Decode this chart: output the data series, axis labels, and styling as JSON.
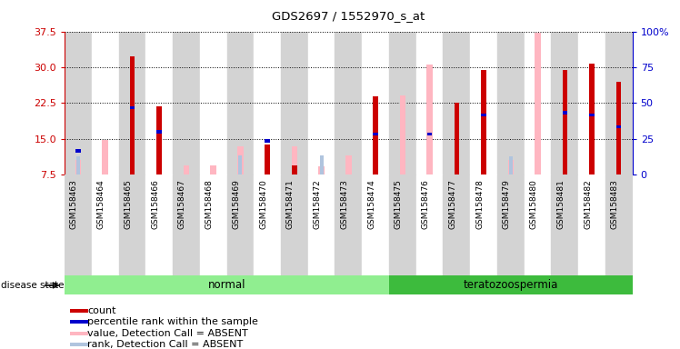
{
  "title": "GDS2697 / 1552970_s_at",
  "samples": [
    "GSM158463",
    "GSM158464",
    "GSM158465",
    "GSM158466",
    "GSM158467",
    "GSM158468",
    "GSM158469",
    "GSM158470",
    "GSM158471",
    "GSM158472",
    "GSM158473",
    "GSM158474",
    "GSM158475",
    "GSM158476",
    "GSM158477",
    "GSM158478",
    "GSM158479",
    "GSM158480",
    "GSM158481",
    "GSM158482",
    "GSM158483"
  ],
  "count_values": [
    null,
    null,
    32.2,
    21.8,
    null,
    null,
    null,
    13.8,
    9.5,
    null,
    null,
    23.8,
    null,
    null,
    22.5,
    29.5,
    null,
    null,
    29.5,
    30.8,
    27.0
  ],
  "percentile_rank": [
    12.5,
    null,
    21.5,
    16.5,
    null,
    null,
    null,
    14.5,
    null,
    null,
    null,
    16.0,
    null,
    16.0,
    null,
    20.0,
    null,
    null,
    20.5,
    20.0,
    17.5
  ],
  "absent_value": [
    10.5,
    14.8,
    null,
    null,
    9.5,
    9.5,
    13.5,
    null,
    13.5,
    9.2,
    11.5,
    null,
    24.0,
    30.5,
    null,
    null,
    10.5,
    37.2,
    null,
    null,
    null
  ],
  "absent_rank": [
    13.0,
    null,
    null,
    null,
    null,
    null,
    13.5,
    null,
    null,
    13.5,
    null,
    null,
    null,
    null,
    null,
    null,
    13.0,
    null,
    null,
    null,
    null
  ],
  "disease_groups": [
    {
      "label": "normal",
      "start": 0,
      "end": 12,
      "color": "#90ee90"
    },
    {
      "label": "teratozoospermia",
      "start": 12,
      "end": 21,
      "color": "#3dbb3d"
    }
  ],
  "ylim_left": [
    7.5,
    37.5
  ],
  "ylim_right": [
    0,
    100
  ],
  "yticks_left": [
    7.5,
    15.0,
    22.5,
    30.0,
    37.5
  ],
  "yticks_right": [
    0,
    25,
    50,
    75,
    100
  ],
  "colors": {
    "count": "#cc0000",
    "percentile": "#0000cc",
    "absent_value": "#ffb6c1",
    "absent_rank": "#b0c4de",
    "ax_left_tick": "#cc0000",
    "ax_right_tick": "#0000cc",
    "col_bg_light": "#d3d3d3",
    "col_bg_white": "#ffffff"
  },
  "legend_items": [
    {
      "color": "#cc0000",
      "label": "count"
    },
    {
      "color": "#0000cc",
      "label": "percentile rank within the sample"
    },
    {
      "color": "#ffb6c1",
      "label": "value, Detection Call = ABSENT"
    },
    {
      "color": "#b0c4de",
      "label": "rank, Detection Call = ABSENT"
    }
  ]
}
